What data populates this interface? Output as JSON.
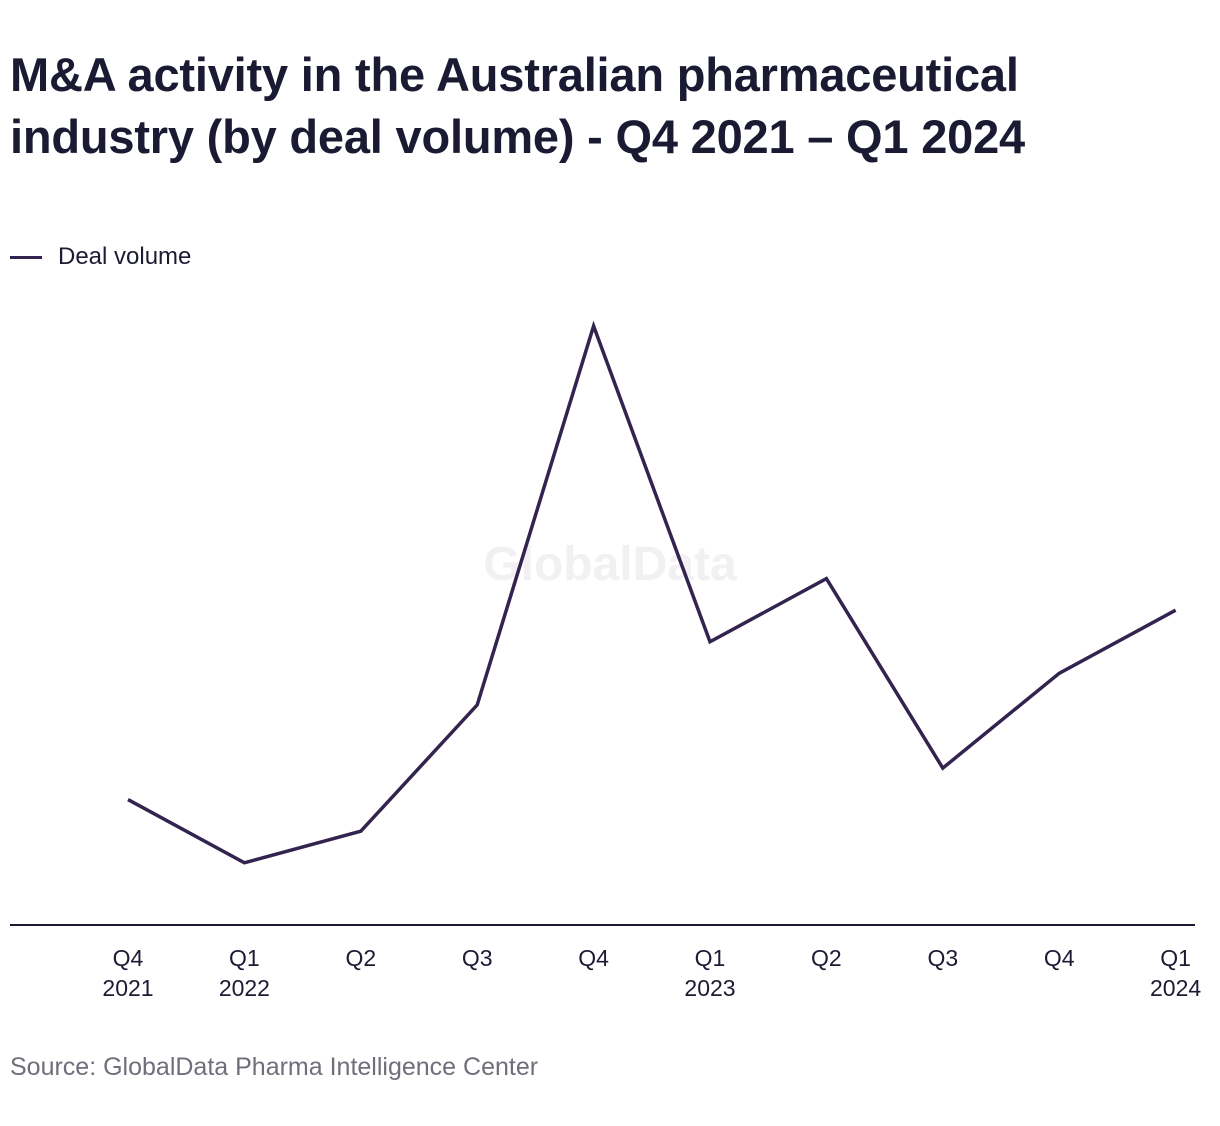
{
  "title": "M&A activity in the Australian pharmaceutical industry (by deal volume) - Q4 2021 – Q1 2024",
  "legend": {
    "label": "Deal volume"
  },
  "watermark": "GlobalData",
  "source": "Source: GlobalData Pharma Intelligence Center",
  "colors": {
    "line": "#33244f",
    "axis": "#1b1b33"
  },
  "chart_data": {
    "type": "line",
    "title": "M&A activity in the Australian pharmaceutical industry (by deal volume) - Q4 2021 – Q1 2024",
    "categories": [
      [
        "Q4",
        "2021"
      ],
      [
        "Q1",
        "2022"
      ],
      [
        "Q2",
        ""
      ],
      [
        "Q3",
        ""
      ],
      [
        "Q4",
        ""
      ],
      [
        "Q1",
        "2023"
      ],
      [
        "Q2",
        ""
      ],
      [
        "Q3",
        ""
      ],
      [
        "Q4",
        ""
      ],
      [
        "Q1",
        "2024"
      ]
    ],
    "series": [
      {
        "name": "Deal volume",
        "values": [
          3,
          1,
          2,
          6,
          18,
          8,
          10,
          4,
          7,
          9
        ]
      }
    ],
    "ylim": [
      -0.97,
      18
    ],
    "grid": false,
    "y_axis_labels": false,
    "legend_position": "top-left"
  }
}
